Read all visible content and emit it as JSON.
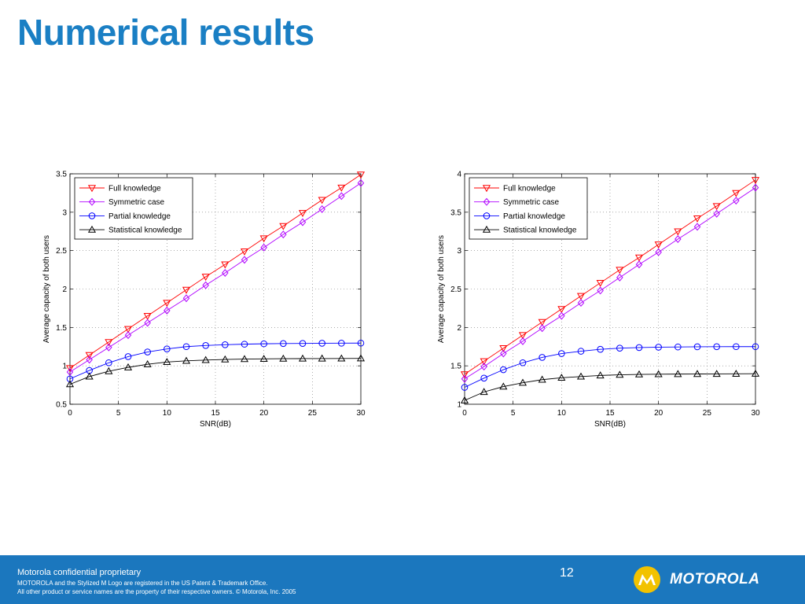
{
  "slide": {
    "title": "Numerical results"
  },
  "footer": {
    "line1": "Motorola confidential proprietary",
    "line2": "MOTOROLA and the Stylized M Logo are registered in the US Patent & Trademark Office.",
    "line3": "All other product or service names are the property of their respective owners. © Motorola, Inc. 2005",
    "page_number": "12",
    "brand": "MOTOROLA",
    "colors": {
      "background": "#1b77be",
      "text": "#ffffff"
    }
  },
  "chart_data": [
    {
      "type": "line",
      "xlabel": "SNR(dB)",
      "ylabel": "Average capacity of both users",
      "xlim": [
        0,
        30
      ],
      "ylim": [
        0.5,
        3.5
      ],
      "xticks": [
        "0",
        "5",
        "10",
        "15",
        "20",
        "25",
        "30"
      ],
      "yticks": [
        "0.5",
        "1",
        "1.5",
        "2",
        "2.5",
        "3",
        "3.5"
      ],
      "grid": true,
      "legend": "top-left",
      "x": [
        0,
        2,
        4,
        6,
        8,
        10,
        12,
        14,
        16,
        18,
        20,
        22,
        24,
        26,
        28,
        30
      ],
      "series": [
        {
          "name": "Full knowledge",
          "color": "#ff0000",
          "marker": "triangle-down",
          "values": [
            0.97,
            1.14,
            1.31,
            1.48,
            1.65,
            1.82,
            1.99,
            2.16,
            2.32,
            2.49,
            2.66,
            2.82,
            2.99,
            3.16,
            3.32,
            3.49
          ]
        },
        {
          "name": "Symmetric case",
          "color": "#b000ff",
          "marker": "diamond",
          "values": [
            0.92,
            1.08,
            1.24,
            1.4,
            1.56,
            1.72,
            1.88,
            2.05,
            2.21,
            2.38,
            2.54,
            2.71,
            2.87,
            3.04,
            3.21,
            3.38
          ]
        },
        {
          "name": "Partial knowledge",
          "color": "#0000ff",
          "marker": "circle",
          "values": [
            0.83,
            0.94,
            1.04,
            1.12,
            1.18,
            1.22,
            1.25,
            1.265,
            1.275,
            1.282,
            1.287,
            1.29,
            1.292,
            1.294,
            1.295,
            1.296
          ]
        },
        {
          "name": "Statistical knowledge",
          "color": "#000000",
          "marker": "triangle-up",
          "values": [
            0.76,
            0.86,
            0.93,
            0.98,
            1.02,
            1.05,
            1.065,
            1.075,
            1.083,
            1.088,
            1.091,
            1.093,
            1.094,
            1.095,
            1.096,
            1.097
          ]
        }
      ]
    },
    {
      "type": "line",
      "xlabel": "SNR(dB)",
      "ylabel": "Average capacity of both users",
      "xlim": [
        0,
        30
      ],
      "ylim": [
        1,
        4
      ],
      "xticks": [
        "0",
        "5",
        "10",
        "15",
        "20",
        "25",
        "30"
      ],
      "yticks": [
        "1",
        "1.5",
        "2",
        "2.5",
        "3",
        "3.5",
        "4"
      ],
      "grid": true,
      "legend": "top-left",
      "x": [
        0,
        2,
        4,
        6,
        8,
        10,
        12,
        14,
        16,
        18,
        20,
        22,
        24,
        26,
        28,
        30
      ],
      "series": [
        {
          "name": "Full knowledge",
          "color": "#ff0000",
          "marker": "triangle-down",
          "values": [
            1.39,
            1.56,
            1.73,
            1.9,
            2.07,
            2.24,
            2.41,
            2.58,
            2.75,
            2.91,
            3.08,
            3.25,
            3.42,
            3.58,
            3.75,
            3.92
          ]
        },
        {
          "name": "Symmetric case",
          "color": "#b000ff",
          "marker": "diamond",
          "values": [
            1.33,
            1.49,
            1.66,
            1.82,
            1.99,
            2.15,
            2.32,
            2.48,
            2.65,
            2.82,
            2.98,
            3.15,
            3.31,
            3.48,
            3.65,
            3.82
          ]
        },
        {
          "name": "Partial knowledge",
          "color": "#0000ff",
          "marker": "circle",
          "values": [
            1.22,
            1.34,
            1.45,
            1.54,
            1.61,
            1.66,
            1.69,
            1.715,
            1.73,
            1.738,
            1.743,
            1.746,
            1.748,
            1.749,
            1.75,
            1.75
          ]
        },
        {
          "name": "Statistical knowledge",
          "color": "#000000",
          "marker": "triangle-up",
          "values": [
            1.05,
            1.16,
            1.23,
            1.28,
            1.32,
            1.345,
            1.36,
            1.375,
            1.383,
            1.388,
            1.391,
            1.393,
            1.394,
            1.395,
            1.396,
            1.397
          ]
        }
      ]
    }
  ]
}
